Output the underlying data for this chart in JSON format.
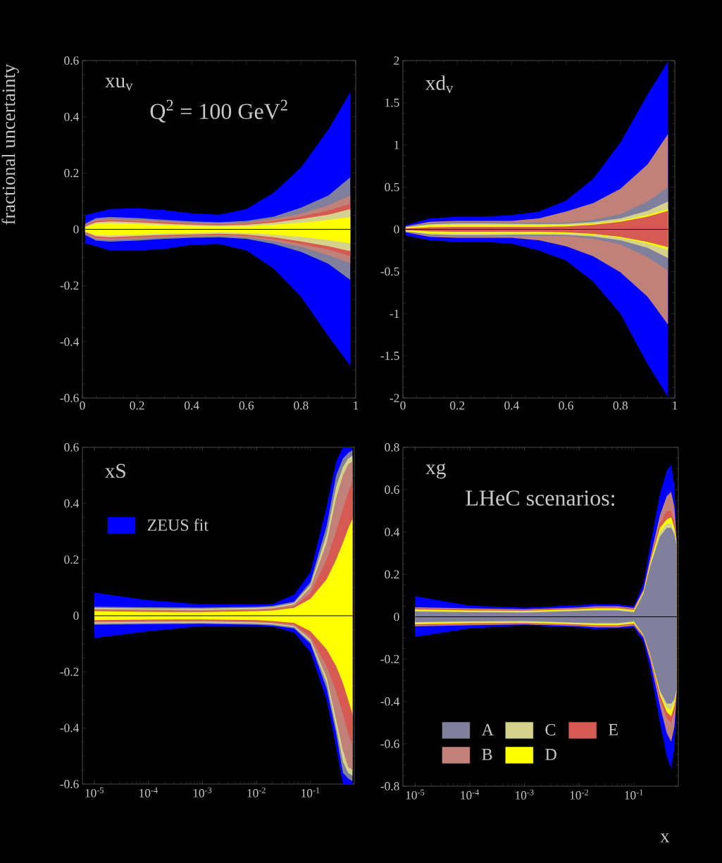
{
  "chart_data": [
    {
      "type": "line",
      "ylabel": "fractional uncertainty",
      "annotations": [
        "xu$_{v}$",
        "Q$^{2}$ = 100 GeV$^{2}$"
      ],
      "x": [
        0.01,
        0.05,
        0.1,
        0.2,
        0.3,
        0.4,
        0.5,
        0.6,
        0.7,
        0.8,
        0.9,
        0.98
      ],
      "xlim": [
        0,
        1
      ],
      "xticks": [
        0,
        0.2,
        0.4,
        0.6,
        0.8,
        1
      ],
      "ylim": [
        -0.6,
        0.6
      ],
      "yticks": [
        -0.6,
        -0.4,
        -0.2,
        0,
        0.2,
        0.4,
        0.6
      ],
      "ref_lines": [
        {
          "axis": "y",
          "value": 0,
          "color": "#000000"
        }
      ],
      "series": [
        {
          "color": "#0000ff",
          "values": [
            null,
            null,
            null,
            null,
            null,
            null,
            null,
            null,
            null,
            null,
            null,
            null
          ],
          "upper": [
            0.05,
            0.06,
            0.072,
            0.075,
            0.068,
            0.057,
            0.052,
            0.072,
            0.13,
            0.22,
            0.355,
            0.487
          ],
          "lower": [
            -0.05,
            -0.06,
            -0.075,
            -0.075,
            -0.07,
            -0.055,
            -0.052,
            -0.075,
            -0.14,
            -0.24,
            -0.38,
            -0.485
          ]
        },
        {
          "color": "#80809c",
          "values": [
            null,
            null,
            null,
            null,
            null,
            null,
            null,
            null,
            null,
            null,
            null,
            null
          ],
          "upper": [
            0.02,
            0.04,
            0.044,
            0.04,
            0.034,
            0.028,
            0.025,
            0.03,
            0.045,
            0.077,
            0.12,
            0.185
          ],
          "lower": [
            -0.02,
            -0.04,
            -0.044,
            -0.04,
            -0.034,
            -0.03,
            -0.028,
            -0.034,
            -0.052,
            -0.08,
            -0.123,
            -0.18
          ]
        },
        {
          "color": "#c08278",
          "values": [
            null,
            null,
            null,
            null,
            null,
            null,
            null,
            null,
            null,
            null,
            null,
            null
          ],
          "upper": [
            0.016,
            0.035,
            0.038,
            0.034,
            0.029,
            0.024,
            0.021,
            0.024,
            0.036,
            0.055,
            0.085,
            0.12
          ],
          "lower": [
            -0.016,
            -0.035,
            -0.038,
            -0.034,
            -0.029,
            -0.026,
            -0.024,
            -0.028,
            -0.042,
            -0.062,
            -0.092,
            -0.12
          ]
        },
        {
          "color": "#d5d28c",
          "values": [
            null,
            null,
            null,
            null,
            null,
            null,
            null,
            null,
            null,
            null,
            null,
            null
          ],
          "upper": [
            0.01,
            0.025,
            0.028,
            0.025,
            0.02,
            0.016,
            0.014,
            0.016,
            0.024,
            0.037,
            0.052,
            0.072
          ],
          "lower": [
            -0.01,
            -0.025,
            -0.028,
            -0.024,
            -0.02,
            -0.018,
            -0.016,
            -0.019,
            -0.028,
            -0.043,
            -0.06,
            -0.078
          ]
        },
        {
          "color": "#ffff00",
          "values": [
            null,
            null,
            null,
            null,
            null,
            null,
            null,
            null,
            null,
            null,
            null,
            null
          ],
          "upper": [
            0.007,
            0.02,
            0.022,
            0.019,
            0.015,
            0.012,
            0.01,
            0.011,
            0.016,
            0.023,
            0.033,
            0.043
          ],
          "lower": [
            -0.007,
            -0.02,
            -0.022,
            -0.019,
            -0.015,
            -0.013,
            -0.011,
            -0.013,
            -0.019,
            -0.027,
            -0.038,
            -0.05
          ]
        },
        {
          "color": "#d65a52",
          "values": [
            null,
            null,
            null,
            null,
            null,
            null,
            null,
            null,
            null,
            null,
            null,
            null
          ],
          "upper": [
            0.013,
            0.03,
            0.033,
            0.029,
            0.025,
            0.02,
            0.018,
            0.02,
            0.03,
            0.046,
            0.067,
            0.09
          ],
          "lower": [
            -0.013,
            -0.03,
            -0.033,
            -0.029,
            -0.025,
            -0.022,
            -0.02,
            -0.024,
            -0.035,
            -0.052,
            -0.072,
            -0.095
          ]
        }
      ]
    },
    {
      "type": "line",
      "annotations": [
        "xd$_{v}$"
      ],
      "x": [
        0.01,
        0.1,
        0.2,
        0.3,
        0.4,
        0.5,
        0.6,
        0.7,
        0.8,
        0.9,
        0.975
      ],
      "xlim": [
        0,
        1
      ],
      "xticks": [
        0,
        0.2,
        0.4,
        0.6,
        0.8,
        1
      ],
      "ylim": [
        -2,
        2
      ],
      "yticks": [
        -2,
        -1.5,
        -1,
        -0.5,
        0,
        0.5,
        1,
        1.5,
        2
      ],
      "ref_lines": [
        {
          "axis": "y",
          "value": 0,
          "color": "#000000"
        }
      ],
      "series": [
        {
          "color": "#0000ff",
          "values": [
            null,
            null,
            null,
            null,
            null,
            null,
            null,
            null,
            null,
            null,
            null
          ],
          "upper": [
            0.05,
            0.13,
            0.15,
            0.15,
            0.17,
            0.21,
            0.34,
            0.6,
            1.03,
            1.6,
            1.99
          ],
          "lower": [
            -0.07,
            -0.13,
            -0.15,
            -0.15,
            -0.17,
            -0.25,
            -0.37,
            -0.62,
            -1.0,
            -1.6,
            -1.99
          ]
        },
        {
          "color": "#80809c",
          "values": [
            null,
            null,
            null,
            null,
            null,
            null,
            null,
            null,
            null,
            null,
            null
          ],
          "upper": [
            0.03,
            0.075,
            0.085,
            0.085,
            0.08,
            0.08,
            0.08,
            0.11,
            0.18,
            0.33,
            0.5
          ],
          "lower": [
            -0.03,
            -0.075,
            -0.085,
            -0.085,
            -0.08,
            -0.08,
            -0.08,
            -0.11,
            -0.18,
            -0.33,
            -0.49
          ]
        },
        {
          "color": "#c08278",
          "values": [
            null,
            null,
            null,
            null,
            null,
            null,
            null,
            null,
            null,
            null,
            null
          ],
          "upper": [
            0.035,
            0.09,
            0.1,
            0.1,
            0.1,
            0.13,
            0.21,
            0.31,
            0.48,
            0.77,
            1.13
          ],
          "lower": [
            -0.035,
            -0.09,
            -0.1,
            -0.1,
            -0.1,
            -0.13,
            -0.2,
            -0.32,
            -0.51,
            -0.8,
            -1.13
          ]
        },
        {
          "color": "#d5d28c",
          "values": [
            null,
            null,
            null,
            null,
            null,
            null,
            null,
            null,
            null,
            null,
            null
          ],
          "upper": [
            0.025,
            0.06,
            0.068,
            0.068,
            0.064,
            0.062,
            0.065,
            0.085,
            0.13,
            0.22,
            0.33
          ],
          "lower": [
            -0.025,
            -0.06,
            -0.068,
            -0.068,
            -0.064,
            -0.062,
            -0.065,
            -0.085,
            -0.13,
            -0.22,
            -0.34
          ]
        },
        {
          "color": "#ffff00",
          "values": [
            null,
            null,
            null,
            null,
            null,
            null,
            null,
            null,
            null,
            null,
            null
          ],
          "upper": [
            0.02,
            0.045,
            0.05,
            0.05,
            0.048,
            0.046,
            0.05,
            0.065,
            0.1,
            0.17,
            0.24
          ],
          "lower": [
            -0.02,
            -0.045,
            -0.05,
            -0.05,
            -0.048,
            -0.046,
            -0.05,
            -0.065,
            -0.1,
            -0.17,
            -0.24
          ]
        },
        {
          "color": "#d65a52",
          "values": [
            null,
            null,
            null,
            null,
            null,
            null,
            null,
            null,
            null,
            null,
            null
          ],
          "upper": [
            0.01,
            0.025,
            0.03,
            0.03,
            0.03,
            0.03,
            0.035,
            0.055,
            0.09,
            0.15,
            0.22
          ],
          "lower": [
            -0.01,
            -0.025,
            -0.03,
            -0.03,
            -0.03,
            -0.03,
            -0.035,
            -0.055,
            -0.09,
            -0.15,
            -0.21
          ]
        }
      ]
    },
    {
      "type": "line",
      "annotations": [
        "xS"
      ],
      "log": "x",
      "legend": "top left",
      "x": [
        1e-05,
        0.0001,
        0.001,
        0.01,
        0.02,
        0.05,
        0.1,
        0.2,
        0.3,
        0.4,
        0.5,
        0.6
      ],
      "xlim": [
        6e-06,
        0.65
      ],
      "xticks": [
        {
          "value": 1e-05,
          "label": "10$^{-5}$"
        },
        {
          "value": 0.0001,
          "label": "10$^{-4}$"
        },
        {
          "value": 0.001,
          "label": "10$^{-3}$"
        },
        {
          "value": 0.01,
          "label": "10$^{-2}$"
        },
        {
          "value": 0.1,
          "label": "10$^{-1}$"
        }
      ],
      "ylim": [
        -0.6,
        0.6
      ],
      "yticks": [
        -0.6,
        -0.4,
        -0.2,
        0,
        0.2,
        0.4,
        0.6
      ],
      "ref_lines": [
        {
          "axis": "y",
          "value": 0,
          "color": "#000000"
        }
      ],
      "series": [
        {
          "name": "ZEUS fit",
          "color": "#0000ff",
          "values": [
            null,
            null,
            null,
            null,
            null,
            null,
            null,
            null,
            null,
            null,
            null,
            null
          ],
          "upper": [
            0.082,
            0.055,
            0.04,
            0.04,
            0.042,
            0.075,
            0.155,
            0.39,
            0.55,
            0.6,
            0.6,
            0.6
          ],
          "lower": [
            -0.08,
            -0.055,
            -0.037,
            -0.037,
            -0.038,
            -0.06,
            -0.13,
            -0.3,
            -0.47,
            -0.6,
            -0.6,
            -0.6
          ]
        },
        {
          "color": "#80809c",
          "values": [
            null,
            null,
            null,
            null,
            null,
            null,
            null,
            null,
            null,
            null,
            null,
            null
          ],
          "upper": [
            0.032,
            0.03,
            0.029,
            0.032,
            0.035,
            0.05,
            0.12,
            0.32,
            0.5,
            0.56,
            0.58,
            0.59
          ],
          "lower": [
            -0.032,
            -0.03,
            -0.029,
            -0.032,
            -0.035,
            -0.045,
            -0.1,
            -0.26,
            -0.42,
            -0.56,
            -0.58,
            -0.59
          ]
        },
        {
          "color": "#c08278",
          "values": [
            null,
            null,
            null,
            null,
            null,
            null,
            null,
            null,
            null,
            null,
            null,
            null
          ],
          "upper": [
            0.024,
            0.022,
            0.021,
            0.024,
            0.027,
            0.04,
            0.1,
            0.26,
            0.42,
            0.5,
            0.54,
            0.55
          ],
          "lower": [
            -0.024,
            -0.022,
            -0.021,
            -0.024,
            -0.027,
            -0.037,
            -0.085,
            -0.22,
            -0.37,
            -0.48,
            -0.54,
            -0.55
          ]
        },
        {
          "color": "#d5d28c",
          "values": [
            null,
            null,
            null,
            null,
            null,
            null,
            null,
            null,
            null,
            null,
            null,
            null
          ],
          "upper": [
            0.028,
            0.026,
            0.025,
            0.028,
            0.031,
            0.045,
            0.11,
            0.29,
            0.46,
            0.53,
            0.56,
            0.57
          ],
          "lower": [
            -0.028,
            -0.026,
            -0.025,
            -0.028,
            -0.031,
            -0.041,
            -0.093,
            -0.24,
            -0.4,
            -0.52,
            -0.56,
            -0.57
          ]
        },
        {
          "color": "#ffff00",
          "values": [
            null,
            null,
            null,
            null,
            null,
            null,
            null,
            null,
            null,
            null,
            null,
            null
          ],
          "upper": [
            0.016,
            0.014,
            0.013,
            0.016,
            0.019,
            0.028,
            0.06,
            0.13,
            0.2,
            0.26,
            0.31,
            0.345
          ],
          "lower": [
            -0.016,
            -0.014,
            -0.013,
            -0.016,
            -0.019,
            -0.026,
            -0.055,
            -0.12,
            -0.18,
            -0.24,
            -0.3,
            -0.35
          ]
        },
        {
          "color": "#d65a52",
          "values": [
            null,
            null,
            null,
            null,
            null,
            null,
            null,
            null,
            null,
            null,
            null,
            null
          ],
          "upper": [
            0.02,
            0.018,
            0.017,
            0.02,
            0.023,
            0.034,
            0.08,
            0.2,
            0.3,
            0.38,
            0.44,
            0.48
          ],
          "lower": [
            -0.02,
            -0.018,
            -0.017,
            -0.02,
            -0.023,
            -0.032,
            -0.075,
            -0.18,
            -0.27,
            -0.35,
            -0.42,
            -0.46
          ]
        }
      ]
    },
    {
      "type": "line",
      "xlabel": "x",
      "annotations": [
        "xg",
        "LHeC scenarios:"
      ],
      "log": "x",
      "legend": "bottom left",
      "x": [
        1e-05,
        0.0001,
        0.001,
        0.01,
        0.02,
        0.05,
        0.1,
        0.15,
        0.2,
        0.3,
        0.4,
        0.48,
        0.55,
        0.6
      ],
      "xlim": [
        6e-06,
        0.65
      ],
      "xticks": [
        {
          "value": 1e-05,
          "label": "10$^{-5}$"
        },
        {
          "value": 0.0001,
          "label": "10$^{-4}$"
        },
        {
          "value": 0.001,
          "label": "10$^{-3}$"
        },
        {
          "value": 0.01,
          "label": "10$^{-2}$"
        },
        {
          "value": 0.1,
          "label": "10$^{-1}$"
        }
      ],
      "ylim": [
        -0.8,
        0.8
      ],
      "yticks": [
        -0.8,
        -0.6,
        -0.4,
        -0.2,
        0,
        0.2,
        0.4,
        0.6,
        0.8
      ],
      "ref_lines": [
        {
          "axis": "y",
          "value": 0,
          "color": "#000000"
        }
      ],
      "series": [
        {
          "color": "#0000ff",
          "values": [
            null,
            null,
            null,
            null,
            null,
            null,
            null,
            null,
            null,
            null,
            null,
            null,
            null,
            null
          ],
          "upper": [
            0.097,
            0.052,
            0.043,
            0.055,
            0.06,
            0.058,
            0.05,
            0.16,
            0.34,
            0.58,
            0.69,
            0.716,
            0.62,
            0.4
          ],
          "lower": [
            -0.095,
            -0.055,
            -0.04,
            -0.05,
            -0.058,
            -0.055,
            -0.05,
            -0.12,
            -0.25,
            -0.5,
            -0.66,
            -0.716,
            -0.62,
            -0.42
          ]
        },
        {
          "name": "A",
          "color": "#80809c",
          "values": [
            null,
            null,
            null,
            null,
            null,
            null,
            null,
            null,
            null,
            null,
            null,
            null,
            null,
            null
          ],
          "upper": [
            0.025,
            0.022,
            0.02,
            0.028,
            0.03,
            0.03,
            0.022,
            0.11,
            0.24,
            0.38,
            0.42,
            0.42,
            0.39,
            0.34
          ],
          "lower": [
            -0.025,
            -0.022,
            -0.02,
            -0.028,
            -0.03,
            -0.03,
            -0.022,
            -0.085,
            -0.18,
            -0.35,
            -0.41,
            -0.41,
            -0.39,
            -0.345
          ]
        },
        {
          "name": "B",
          "color": "#c08278",
          "values": [
            null,
            null,
            null,
            null,
            null,
            null,
            null,
            null,
            null,
            null,
            null,
            null,
            null,
            null
          ],
          "upper": [
            0.045,
            0.04,
            0.036,
            0.044,
            0.05,
            0.05,
            0.042,
            0.13,
            0.28,
            0.48,
            0.57,
            0.59,
            0.52,
            0.38
          ],
          "lower": [
            -0.045,
            -0.04,
            -0.036,
            -0.044,
            -0.05,
            -0.05,
            -0.042,
            -0.1,
            -0.21,
            -0.42,
            -0.55,
            -0.59,
            -0.52,
            -0.39
          ]
        },
        {
          "name": "C",
          "color": "#d5d28c",
          "values": [
            null,
            null,
            null,
            null,
            null,
            null,
            null,
            null,
            null,
            null,
            null,
            null,
            null,
            null
          ],
          "upper": [
            0.03,
            0.026,
            0.024,
            0.032,
            0.035,
            0.035,
            0.027,
            0.115,
            0.25,
            0.4,
            0.44,
            0.44,
            0.4,
            0.35
          ],
          "lower": [
            -0.03,
            -0.026,
            -0.024,
            -0.032,
            -0.035,
            -0.035,
            -0.027,
            -0.088,
            -0.185,
            -0.36,
            -0.43,
            -0.44,
            -0.4,
            -0.355
          ]
        },
        {
          "name": "D",
          "color": "#ffff00",
          "values": [
            null,
            null,
            null,
            null,
            null,
            null,
            null,
            null,
            null,
            null,
            null,
            null,
            null,
            null
          ],
          "upper": [
            0.035,
            0.03,
            0.028,
            0.036,
            0.04,
            0.04,
            0.032,
            0.12,
            0.26,
            0.42,
            0.46,
            0.47,
            0.42,
            0.36
          ],
          "lower": [
            -0.035,
            -0.03,
            -0.028,
            -0.036,
            -0.04,
            -0.04,
            -0.032,
            -0.09,
            -0.19,
            -0.37,
            -0.45,
            -0.47,
            -0.42,
            -0.365
          ]
        },
        {
          "name": "E",
          "color": "#d65a52",
          "values": [
            null,
            null,
            null,
            null,
            null,
            null,
            null,
            null,
            null,
            null,
            null,
            null,
            null,
            null
          ],
          "upper": [
            0.04,
            0.035,
            0.032,
            0.04,
            0.045,
            0.045,
            0.037,
            0.125,
            0.27,
            0.44,
            0.5,
            0.5,
            0.45,
            0.37
          ],
          "lower": [
            -0.04,
            -0.035,
            -0.032,
            -0.04,
            -0.045,
            -0.045,
            -0.037,
            -0.095,
            -0.2,
            -0.39,
            -0.48,
            -0.5,
            -0.45,
            -0.375
          ]
        }
      ]
    }
  ]
}
